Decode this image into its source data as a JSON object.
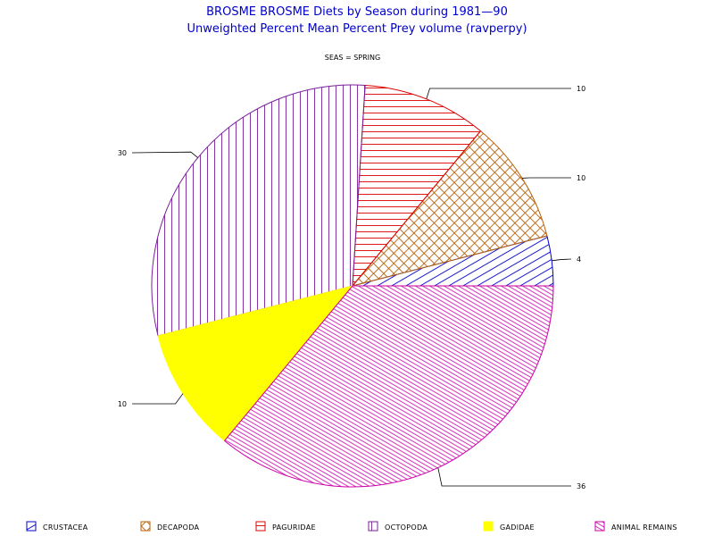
{
  "chart_data": {
    "type": "pie",
    "title": "BROSME BROSME Diets by Season during 1981—90",
    "subtitle": "Unweighted Percent Mean Percent Prey  volume (ravperpy)",
    "panel_label": "SEAS = SPRING",
    "slices": [
      {
        "name": "CRUSTACEA",
        "value": 4,
        "label": "4",
        "color": "#0000cc",
        "pattern": "diag-up"
      },
      {
        "name": "DECAPODA",
        "value": 10,
        "label": "10",
        "color": "#b8620a",
        "pattern": "crosshatch"
      },
      {
        "name": "PAGURIDAE",
        "value": 10,
        "label": "10",
        "color": "#dd0000",
        "pattern": "horizontal"
      },
      {
        "name": "OCTOPODA",
        "value": 30,
        "label": "30",
        "color": "#7a1f9a",
        "pattern": "vertical"
      },
      {
        "name": "GADIDAE",
        "value": 10,
        "label": "10",
        "color": "#ffff00",
        "pattern": "solid"
      },
      {
        "name": "ANIMAL REMAINS",
        "value": 36,
        "label": "36",
        "color": "#cc00aa",
        "pattern": "diag-down"
      }
    ],
    "legend_position": "bottom"
  }
}
